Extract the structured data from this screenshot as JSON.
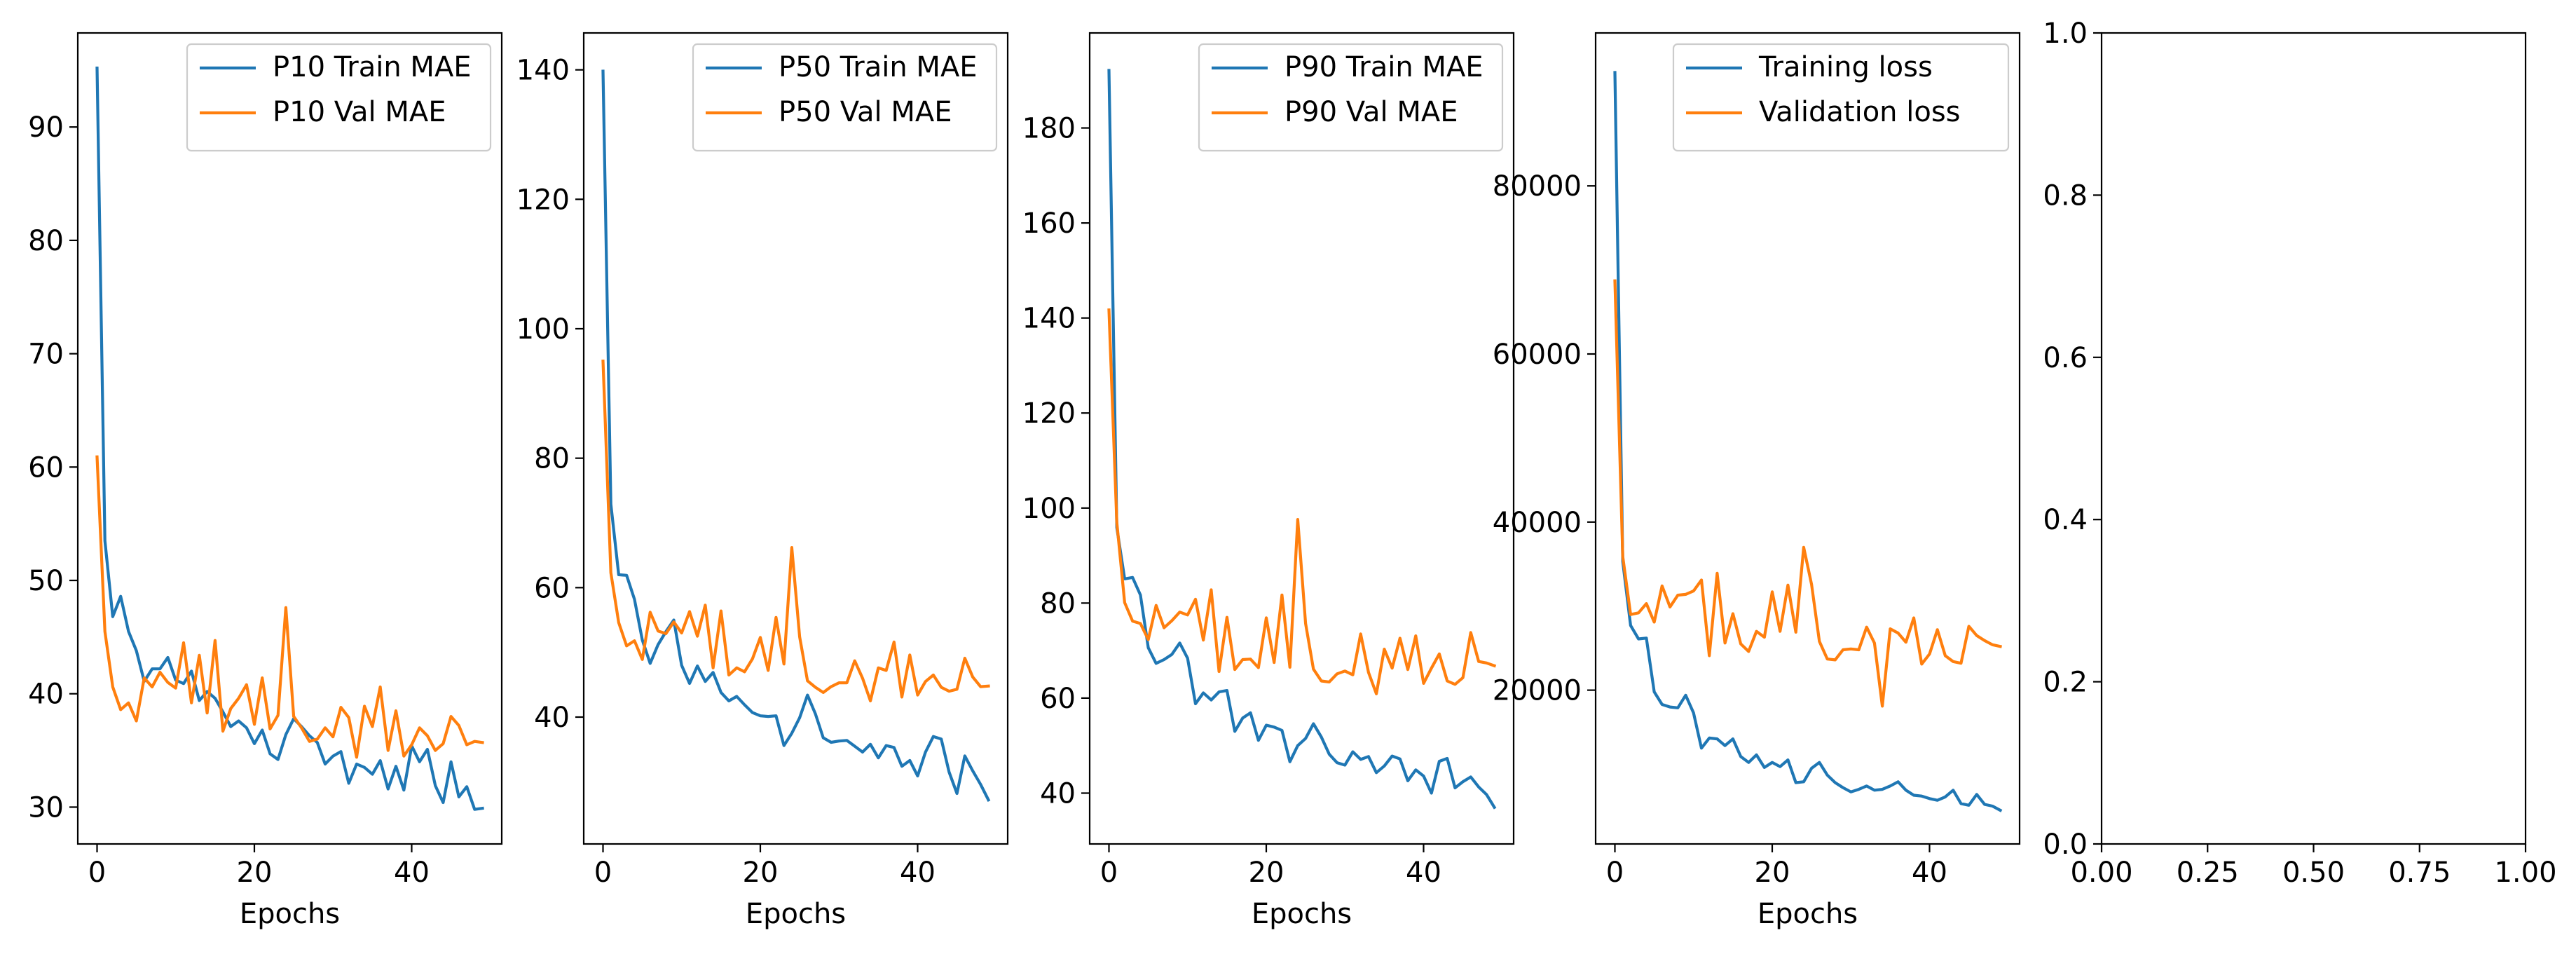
{
  "colors": {
    "series_1": "#1f77b4",
    "series_2": "#ff7f0e",
    "axes": "#000000",
    "legend_border": "#cccccc"
  },
  "chart_data": [
    {
      "type": "line",
      "xlabel": "Epochs",
      "ylabel": "",
      "xlim": [
        -2.45,
        51.45
      ],
      "ylim": [
        26.75,
        98.3
      ],
      "xticks": [
        0,
        20,
        40
      ],
      "yticks": [
        30,
        40,
        50,
        60,
        70,
        80,
        90
      ],
      "legend": "top-right",
      "x": [
        0,
        1,
        2,
        3,
        4,
        5,
        6,
        7,
        8,
        9,
        10,
        11,
        12,
        13,
        14,
        15,
        16,
        17,
        18,
        19,
        20,
        21,
        22,
        23,
        24,
        25,
        26,
        27,
        28,
        29,
        30,
        31,
        32,
        33,
        34,
        35,
        36,
        37,
        38,
        39,
        40,
        41,
        42,
        43,
        44,
        45,
        46,
        47,
        48,
        49
      ],
      "series": [
        {
          "name": "P10 Train MAE",
          "color": "#1f77b4",
          "values": [
            95.2,
            53.5,
            46.8,
            48.6,
            45.5,
            43.8,
            41.1,
            42.2,
            42.2,
            43.2,
            41.2,
            40.9,
            42.0,
            39.4,
            40.2,
            39.6,
            38.4,
            37.1,
            37.6,
            37.0,
            35.6,
            36.8,
            34.7,
            34.2,
            36.4,
            37.8,
            37.1,
            36.3,
            35.7,
            33.8,
            34.5,
            34.9,
            32.1,
            33.8,
            33.5,
            32.9,
            34.1,
            31.6,
            33.6,
            31.5,
            35.4,
            34.0,
            35.1,
            31.9,
            30.4,
            34.0,
            30.9,
            31.8,
            29.8,
            29.9
          ]
        },
        {
          "name": "P10 Val MAE",
          "color": "#ff7f0e",
          "values": [
            60.9,
            45.5,
            40.6,
            38.6,
            39.2,
            37.6,
            41.4,
            40.6,
            41.9,
            41.0,
            40.5,
            44.5,
            39.2,
            43.4,
            38.3,
            44.7,
            36.7,
            38.7,
            39.6,
            40.8,
            37.3,
            41.4,
            36.9,
            38.1,
            47.6,
            38.0,
            37.0,
            35.8,
            36.0,
            37.0,
            36.2,
            38.8,
            37.9,
            34.4,
            38.9,
            37.1,
            40.6,
            35.0,
            38.5,
            34.5,
            35.5,
            37.0,
            36.3,
            35.0,
            35.6,
            38.0,
            37.2,
            35.5,
            35.8,
            35.7
          ]
        }
      ]
    },
    {
      "type": "line",
      "xlabel": "Epochs",
      "ylabel": "",
      "xlim": [
        -2.45,
        51.45
      ],
      "ylim": [
        20.4,
        145.7
      ],
      "xticks": [
        0,
        20,
        40
      ],
      "yticks": [
        40,
        60,
        80,
        100,
        120,
        140
      ],
      "legend": "top-right",
      "x": [
        0,
        1,
        2,
        3,
        4,
        5,
        6,
        7,
        8,
        9,
        10,
        11,
        12,
        13,
        14,
        15,
        16,
        17,
        18,
        19,
        20,
        21,
        22,
        23,
        24,
        25,
        26,
        27,
        28,
        29,
        30,
        31,
        32,
        33,
        34,
        35,
        36,
        37,
        38,
        39,
        40,
        41,
        42,
        43,
        44,
        45,
        46,
        47,
        48,
        49
      ],
      "series": [
        {
          "name": "P50 Train MAE",
          "color": "#1f77b4",
          "values": [
            139.8,
            72.9,
            62.0,
            61.9,
            58.2,
            51.9,
            48.3,
            51.2,
            53.2,
            55.0,
            48.0,
            45.2,
            47.9,
            45.5,
            46.9,
            43.8,
            42.5,
            43.2,
            41.9,
            40.7,
            40.2,
            40.1,
            40.2,
            35.6,
            37.5,
            39.9,
            43.4,
            40.5,
            36.8,
            36.1,
            36.3,
            36.4,
            35.5,
            34.6,
            35.8,
            33.7,
            35.6,
            35.3,
            32.4,
            33.3,
            30.9,
            34.6,
            37.0,
            36.6,
            31.5,
            28.2,
            34.0,
            31.7,
            29.6,
            27.2
          ]
        },
        {
          "name": "P50 Val MAE",
          "color": "#ff7f0e",
          "values": [
            95.0,
            62.3,
            54.6,
            51.0,
            51.8,
            48.9,
            56.2,
            53.3,
            52.9,
            54.7,
            53.0,
            56.3,
            52.5,
            57.3,
            47.6,
            56.4,
            46.5,
            47.6,
            47.0,
            49.0,
            52.3,
            47.2,
            55.4,
            48.2,
            66.2,
            52.4,
            45.6,
            44.6,
            43.8,
            44.7,
            45.3,
            45.3,
            48.7,
            46.0,
            42.5,
            47.6,
            47.2,
            51.6,
            43.1,
            49.6,
            43.4,
            45.5,
            46.5,
            44.6,
            44.0,
            44.3,
            49.1,
            46.2,
            44.7,
            44.8
          ]
        }
      ]
    },
    {
      "type": "line",
      "xlabel": "Epochs",
      "ylabel": "",
      "xlim": [
        -2.45,
        51.45
      ],
      "ylim": [
        29.3,
        200.0
      ],
      "xticks": [
        0,
        20,
        40
      ],
      "yticks": [
        40,
        60,
        80,
        100,
        120,
        140,
        160,
        180
      ],
      "legend": "top-right",
      "x": [
        0,
        1,
        2,
        3,
        4,
        5,
        6,
        7,
        8,
        9,
        10,
        11,
        12,
        13,
        14,
        15,
        16,
        17,
        18,
        19,
        20,
        21,
        22,
        23,
        24,
        25,
        26,
        27,
        28,
        29,
        30,
        31,
        32,
        33,
        34,
        35,
        36,
        37,
        38,
        39,
        40,
        41,
        42,
        43,
        44,
        45,
        46,
        47,
        48,
        49
      ],
      "series": [
        {
          "name": "P90 Train MAE",
          "color": "#1f77b4",
          "values": [
            192.1,
            95.9,
            85.1,
            85.4,
            81.7,
            70.6,
            67.3,
            68.1,
            69.2,
            71.6,
            68.4,
            58.8,
            61.1,
            59.6,
            61.3,
            61.6,
            53.0,
            55.8,
            56.9,
            51.1,
            54.3,
            53.9,
            53.2,
            46.6,
            50.0,
            51.5,
            54.6,
            51.8,
            48.2,
            46.4,
            45.9,
            48.7,
            47.1,
            47.7,
            44.3,
            45.7,
            47.8,
            47.2,
            42.6,
            44.9,
            43.6,
            40.0,
            46.7,
            47.3,
            41.1,
            42.4,
            43.4,
            41.3,
            39.7,
            37.0
          ]
        },
        {
          "name": "P90 Val MAE",
          "color": "#ff7f0e",
          "values": [
            141.7,
            97.0,
            80.1,
            76.2,
            75.7,
            72.3,
            79.5,
            74.8,
            76.3,
            78.1,
            77.5,
            80.8,
            72.2,
            82.8,
            65.6,
            77.0,
            66.0,
            68.1,
            68.2,
            66.4,
            76.9,
            67.5,
            81.7,
            66.5,
            97.6,
            75.7,
            66.1,
            63.6,
            63.4,
            65.1,
            65.7,
            64.9,
            73.5,
            65.4,
            60.9,
            70.3,
            66.3,
            72.6,
            66.0,
            73.1,
            63.1,
            66.3,
            69.3,
            63.6,
            62.9,
            64.3,
            73.8,
            67.7,
            67.4,
            66.8
          ]
        }
      ]
    },
    {
      "type": "line",
      "xlabel": "Epochs",
      "ylabel": "",
      "xlim": [
        -2.45,
        51.45
      ],
      "ylim": [
        1700,
        98200
      ],
      "xticks": [
        0,
        20,
        40
      ],
      "yticks": [
        20000,
        40000,
        60000,
        80000
      ],
      "legend": "top-right",
      "x": [
        0,
        1,
        2,
        3,
        4,
        5,
        6,
        7,
        8,
        9,
        10,
        11,
        12,
        13,
        14,
        15,
        16,
        17,
        18,
        19,
        20,
        21,
        22,
        23,
        24,
        25,
        26,
        27,
        28,
        29,
        30,
        31,
        32,
        33,
        34,
        35,
        36,
        37,
        38,
        39,
        40,
        41,
        42,
        43,
        44,
        45,
        46,
        47,
        48,
        49
      ],
      "series": [
        {
          "name": "Training loss",
          "color": "#1f77b4",
          "values": [
            93500,
            35300,
            27700,
            26100,
            26200,
            19800,
            18300,
            18000,
            17900,
            19400,
            17300,
            13100,
            14300,
            14200,
            13400,
            14200,
            12100,
            11400,
            12300,
            10800,
            11400,
            10900,
            11700,
            9000,
            9100,
            10700,
            11400,
            9900,
            9000,
            8400,
            7900,
            8200,
            8600,
            8100,
            8200,
            8600,
            9100,
            8100,
            7500,
            7400,
            7100,
            6900,
            7300,
            8100,
            6500,
            6300,
            7600,
            6400,
            6200,
            5700
          ]
        },
        {
          "name": "Validation loss",
          "color": "#ff7f0e",
          "values": [
            68700,
            35900,
            29000,
            29200,
            30300,
            28100,
            32400,
            29900,
            31300,
            31400,
            31800,
            33100,
            24100,
            33900,
            25600,
            29100,
            25500,
            24600,
            27000,
            26300,
            31700,
            27000,
            32500,
            26900,
            37000,
            32600,
            25800,
            23700,
            23600,
            24800,
            24900,
            24800,
            27500,
            25600,
            18100,
            27300,
            26800,
            25700,
            28600,
            23100,
            24300,
            27200,
            24100,
            23400,
            23200,
            27600,
            26500,
            25900,
            25400,
            25200
          ]
        }
      ]
    },
    {
      "type": "line",
      "xlabel": "",
      "ylabel": "",
      "xlim": [
        0,
        1
      ],
      "ylim": [
        0,
        1
      ],
      "xticks": [
        "0.00",
        "0.25",
        "0.50",
        "0.75",
        "1.00"
      ],
      "yticks": [
        "0.0",
        "0.2",
        "0.4",
        "0.6",
        "0.8",
        "1.0"
      ],
      "series": []
    }
  ]
}
